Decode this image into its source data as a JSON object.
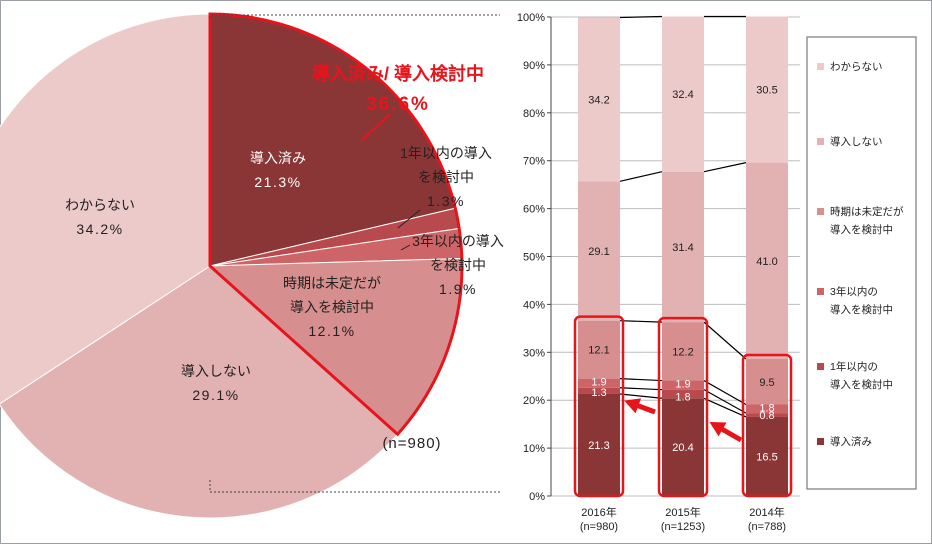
{
  "chart_data": [
    {
      "type": "pie",
      "slices": [
        {
          "label": "導入済み",
          "value": 21.3,
          "color": "#8b3636"
        },
        {
          "label": "1年以内の導入を検討中",
          "value": 1.3,
          "color": "#b84a4e"
        },
        {
          "label": "3年以内の導入を検討中",
          "value": 1.9,
          "color": "#cd6468"
        },
        {
          "label": "時期は未定だが導入を検討中",
          "value": 12.1,
          "color": "#d68e8e"
        },
        {
          "label": "導入しない",
          "value": 29.1,
          "color": "#e2b1b1"
        },
        {
          "label": "わからない",
          "value": 34.2,
          "color": "#edcaca"
        }
      ],
      "labels": {
        "s0": [
          "導入済み",
          "21.3%"
        ],
        "s1": [
          "1年以内の導入",
          "を検討中",
          "1.3%"
        ],
        "s2": [
          "3年以内の導入",
          "を検討中",
          "1.9%"
        ],
        "s3": [
          "時期は未定だが",
          "導入を検討中",
          "12.1%"
        ],
        "s4": [
          "導入しない",
          "29.1%"
        ],
        "s5": [
          "わからない",
          "34.2%"
        ]
      },
      "highlight_title": "導入済み/ 導入検討中",
      "highlight_value": "36.6%",
      "n_note": "(n=980)"
    },
    {
      "type": "bar",
      "stacked": true,
      "categories": [
        "2016年",
        "2015年",
        "2014年"
      ],
      "category_notes": [
        "(n=980)",
        "(n=1253)",
        "(n=788)"
      ],
      "ylim": [
        0,
        100
      ],
      "yticks": [
        "0%",
        "10%",
        "20%",
        "30%",
        "40%",
        "50%",
        "60%",
        "70%",
        "80%",
        "90%",
        "100%"
      ],
      "series": [
        {
          "name": "導入済み",
          "values": [
            21.3,
            20.4,
            16.5
          ],
          "labels": [
            "21.3",
            "20.4",
            "16.5"
          ],
          "color": "#8b3636"
        },
        {
          "name": "1年以内の導入を検討中",
          "values": [
            1.3,
            1.8,
            0.8
          ],
          "labels": [
            "1.3",
            "1.8",
            "0.8"
          ],
          "color": "#b84a4e"
        },
        {
          "name": "3年以内の導入を検討中",
          "values": [
            1.9,
            1.9,
            1.8
          ],
          "labels": [
            "1.9",
            "1.9",
            "1.8"
          ],
          "color": "#cd6468"
        },
        {
          "name": "時期は未定だが導入を検討中",
          "values": [
            12.1,
            12.2,
            9.5
          ],
          "labels": [
            "12.1",
            "12.2",
            "9.5"
          ],
          "color": "#d68e8e"
        },
        {
          "name": "導入しない",
          "values": [
            29.1,
            31.4,
            41.0
          ],
          "labels": [
            "29.1",
            "31.4",
            "41.0"
          ],
          "color": "#e2b1b1"
        },
        {
          "name": "わからない",
          "values": [
            34.2,
            32.4,
            30.5
          ],
          "labels": [
            "34.2",
            "32.4",
            "30.5"
          ],
          "color": "#edcaca"
        }
      ],
      "legend": {
        "placement": "right",
        "items": [
          [
            "わからない"
          ],
          [
            "導入しない"
          ],
          [
            "時期は未定だが",
            "導入を検討中"
          ],
          [
            "3年以内の",
            "導入を検討中"
          ],
          [
            "1年以内の",
            "導入を検討中"
          ],
          [
            "導入済み"
          ]
        ]
      },
      "grid": true
    }
  ]
}
